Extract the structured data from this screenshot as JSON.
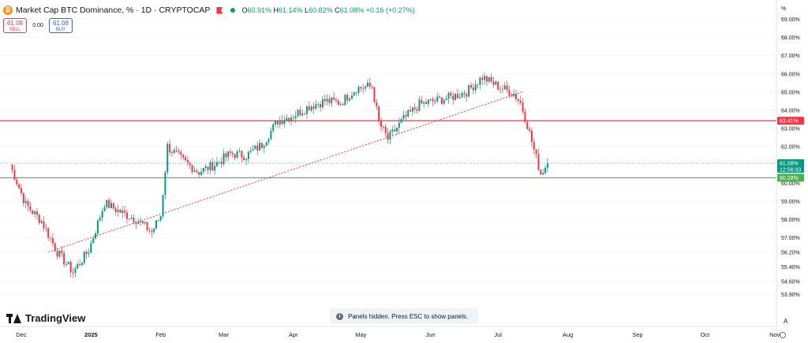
{
  "header": {
    "symbol_badge": "₿",
    "title": "Market Cap BTC Dominance, % · 1D · CRYPTOCAP",
    "ohlc": {
      "o_label": "O",
      "o": "60.91%",
      "h_label": "H",
      "h": "61.14%",
      "l_label": "L",
      "l": "60.82%",
      "c_label": "C",
      "c": "61.08%",
      "change": "+0.16 (+0.27%)"
    }
  },
  "trade": {
    "sell_price": "61.08",
    "sell_label": "SELL",
    "spread": "0.00",
    "buy_price": "61.08",
    "buy_label": "BUY"
  },
  "axis": {
    "unit_label": "%",
    "price_ticks": [
      "69.00%",
      "68.00%",
      "67.00%",
      "66.00%",
      "65.00%",
      "64.00%",
      "63.00%",
      "62.00%",
      "61.00%",
      "60.00%",
      "59.00%",
      "58.00%",
      "57.00%",
      "56.20%",
      "55.40%",
      "54.60%",
      "53.90%"
    ],
    "price_tick_values": [
      69,
      68,
      67,
      66,
      65,
      64,
      63,
      62,
      61,
      60,
      59,
      58,
      57,
      56.2,
      55.4,
      54.6,
      53.9
    ],
    "time_ticks": [
      "Dec",
      "2025",
      "Feb",
      "Mar",
      "Apr",
      "May",
      "Jun",
      "Jul",
      "Aug",
      "Sep",
      "Oct",
      "Nov"
    ],
    "auto_label": "A"
  },
  "levels": {
    "resistance": {
      "value": 63.41,
      "label": "63.41%",
      "color": "#f23645"
    },
    "support": {
      "value": 60.28,
      "label": "60.28%",
      "color": "#4caf50"
    },
    "current": {
      "value": 61.08,
      "label": "61.08%",
      "countdown": "12:56:33",
      "color": "#089981"
    }
  },
  "colors": {
    "up": "#089981",
    "down": "#f23645",
    "trendline": "#f23645"
  },
  "logo": {
    "text": "TradingView"
  },
  "toast": {
    "text": "Panels hidden. Press ESC to show panels."
  },
  "chart_data": {
    "type": "line",
    "title": "Market Cap BTC Dominance, % · 1D · CRYPTOCAP",
    "xlabel": "",
    "ylabel": "",
    "ylim": [
      53.6,
      69.6
    ],
    "x": [
      "Nov 26",
      "Dec 3",
      "Dec 10",
      "Dec 17",
      "Dec 24",
      "Dec 31",
      "Jan 7",
      "Jan 14",
      "Jan 21",
      "Jan 28",
      "Feb 1",
      "Feb 4",
      "Feb 11",
      "Feb 18",
      "Feb 25",
      "Mar 4",
      "Mar 11",
      "Mar 18",
      "Mar 25",
      "Apr 1",
      "Apr 8",
      "Apr 15",
      "Apr 22",
      "Apr 29",
      "May 6",
      "May 9",
      "May 13",
      "May 20",
      "May 27",
      "Jun 3",
      "Jun 10",
      "Jun 17",
      "Jun 24",
      "Jul 1",
      "Jul 8",
      "Jul 11",
      "Jul 14",
      "Jul 17",
      "Jul 20",
      "Jul 23"
    ],
    "series": [
      {
        "values": [
          61.0,
          58.8,
          57.9,
          56.2,
          55.1,
          56.3,
          58.9,
          58.4,
          58.0,
          57.3,
          58.2,
          62.0,
          61.2,
          60.6,
          61.0,
          61.6,
          61.5,
          62.1,
          63.4,
          63.7,
          64.2,
          64.5,
          64.4,
          65.2,
          65.3,
          63.3,
          62.4,
          63.5,
          64.3,
          64.5,
          64.7,
          65.0,
          65.8,
          65.3,
          64.9,
          64.4,
          63.2,
          61.8,
          60.5,
          61.08
        ]
      }
    ],
    "annotations": [
      {
        "type": "hline",
        "y": 63.41,
        "color": "#f23645"
      },
      {
        "type": "hline",
        "y": 60.28,
        "color": "#4caf50"
      },
      {
        "type": "trendline",
        "from": [
          "Dec 13",
          56.2
        ],
        "to": [
          "Jul 12",
          65.0
        ]
      }
    ]
  }
}
